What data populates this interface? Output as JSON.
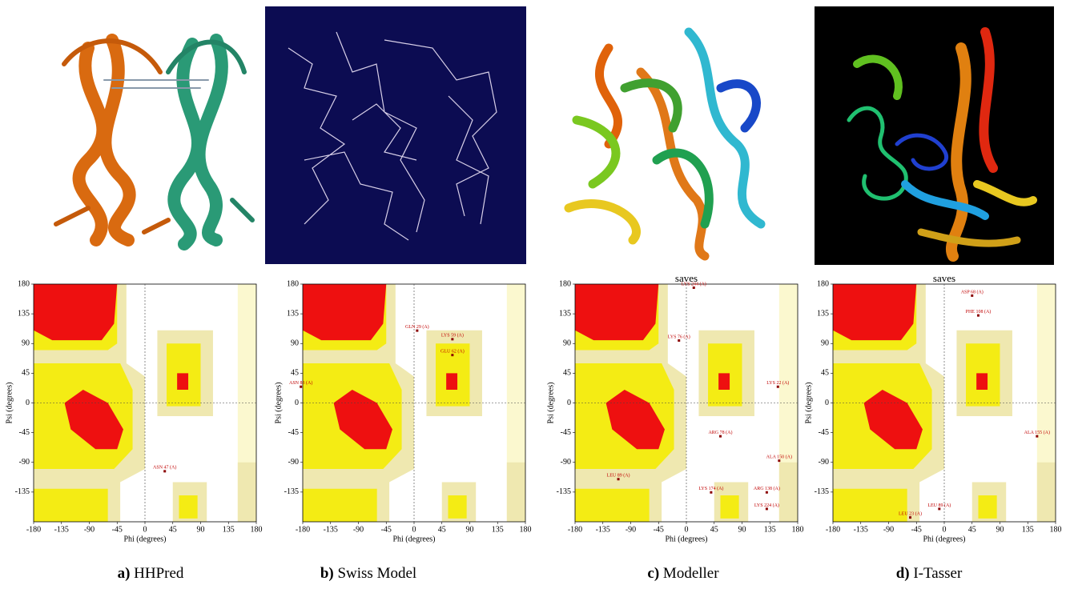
{
  "panels": [
    {
      "letter": "a)",
      "name": "HHPred",
      "xlabel": "Phi (degrees)",
      "ylabel": "Psi (degrees)",
      "xticks": [
        -180,
        -135,
        -90,
        -45,
        0,
        45,
        90,
        135,
        180
      ],
      "yticks": [
        180,
        135,
        90,
        45,
        0,
        -45,
        -90,
        -135
      ],
      "residues": [
        "ASN 47 (A)"
      ]
    },
    {
      "letter": "b)",
      "name": "Swiss Model",
      "xlabel": "Phi (degrees)",
      "ylabel": "Psi (degrees)",
      "xticks": [
        -180,
        -135,
        -90,
        -45,
        0,
        45,
        90,
        135,
        180
      ],
      "yticks": [
        180,
        135,
        90,
        45,
        0,
        -45,
        -90,
        -135
      ],
      "residues": [
        "GLN 29 (A)",
        "LYS 59 (A)",
        "GLU 62 (A)",
        "ASN 83 (A)"
      ]
    },
    {
      "letter": "c)",
      "name": "Modeller",
      "header": "saves",
      "xlabel": "Phi (degrees)",
      "ylabel": "Psi (degrees)",
      "xticks": [
        -180,
        -135,
        -90,
        -45,
        0,
        45,
        90,
        135,
        180
      ],
      "yticks": [
        180,
        135,
        90,
        45,
        0,
        -45,
        -90,
        -135
      ],
      "residues": [
        "LYS 244 (A)",
        "LYS 76 (A)",
        "LYS 22 (A)",
        "ARG 78 (A)",
        "ALA 150 (A)",
        "LEU 89 (A)",
        "LYS 174 (A)",
        "ARG 138 (A)",
        "LYS 224 (A)"
      ]
    },
    {
      "letter": "d)",
      "name": "I-Tasser",
      "header": "saves",
      "xlabel": "Phi (degrees)",
      "ylabel": "Psi (degrees)",
      "xticks": [
        -180,
        -135,
        -90,
        -45,
        0,
        45,
        90,
        135,
        180
      ],
      "yticks": [
        180,
        135,
        90,
        45,
        0,
        -45,
        -90,
        -135
      ],
      "residues": [
        "ASP 68 (A)",
        "PHE 108 (A)",
        "LEU 89 (A)",
        "LEU 23 (A)",
        "ALA 155 (A)"
      ]
    }
  ]
}
